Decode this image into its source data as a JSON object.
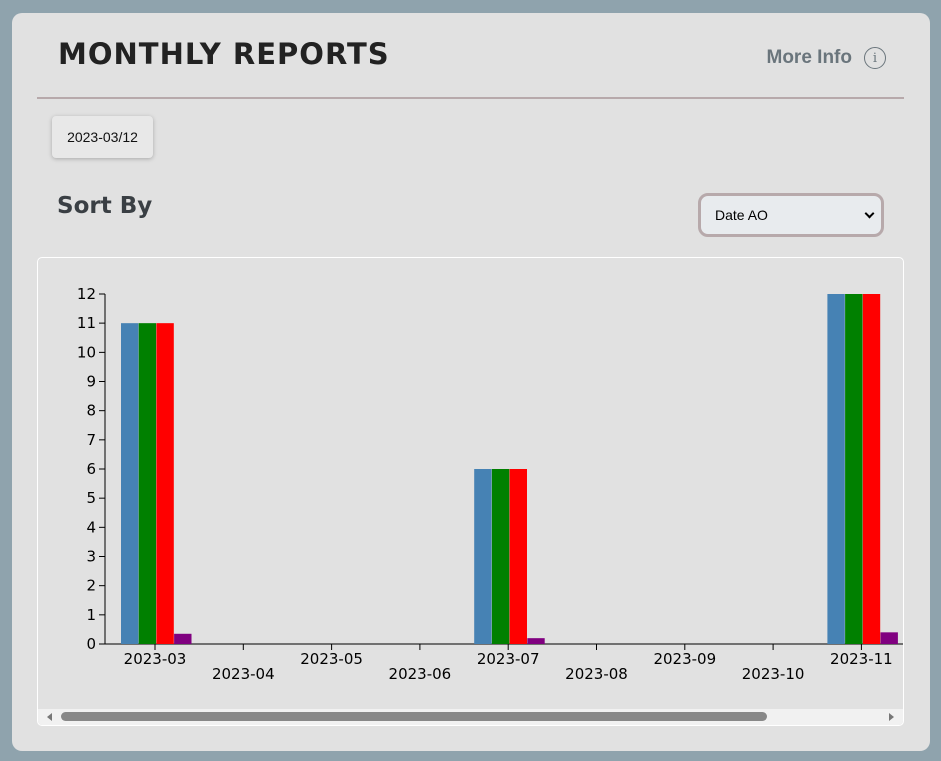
{
  "header": {
    "title": "MONTHLY REPORTS",
    "more_info_label": "More Info",
    "info_icon": "info-icon"
  },
  "date_chip": "2023-03/12",
  "sort": {
    "label": "Sort By",
    "selected": "Date AO"
  },
  "chart_data": {
    "type": "bar",
    "categories": [
      "2023-03",
      "2023-04",
      "2023-05",
      "2023-06",
      "2023-07",
      "2023-08",
      "2023-09",
      "2023-10",
      "2023-11"
    ],
    "series": [
      {
        "color": "#4682b4",
        "values": [
          11,
          0,
          0,
          0,
          6,
          0,
          0,
          0,
          12
        ]
      },
      {
        "color": "#008000",
        "values": [
          11,
          0,
          0,
          0,
          6,
          0,
          0,
          0,
          12
        ]
      },
      {
        "color": "#ff0000",
        "values": [
          11,
          0,
          0,
          0,
          6,
          0,
          0,
          0,
          12
        ]
      },
      {
        "color": "#800080",
        "values": [
          0.35,
          0,
          0,
          0,
          0.2,
          0,
          0,
          0,
          0.4
        ]
      }
    ],
    "ylim": [
      0,
      12
    ],
    "yticks": [
      0,
      1,
      2,
      3,
      4,
      5,
      6,
      7,
      8,
      9,
      10,
      11,
      12
    ],
    "grid": false,
    "legend": "none"
  }
}
